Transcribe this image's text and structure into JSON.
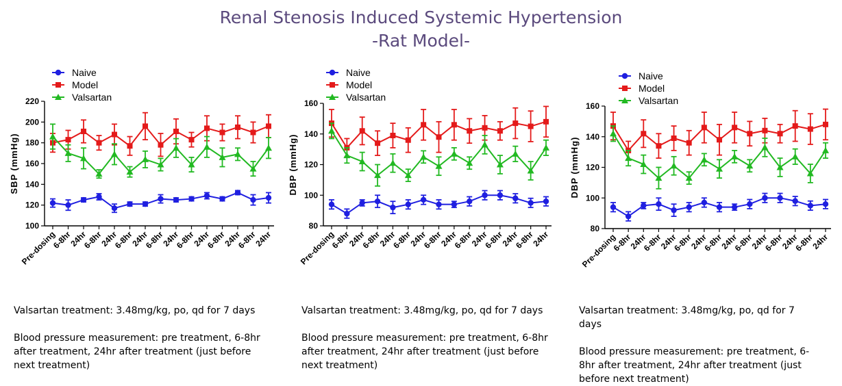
{
  "title_line1": "Renal Stenosis Induced Systemic Hypertension",
  "title_line2": "-Rat Model-",
  "colors": {
    "title": "#5b4a7d",
    "naive": "#1f1fe0",
    "model": "#e41a1a",
    "valsartan": "#22b922"
  },
  "chart_data": [
    {
      "type": "line",
      "ylabel": "SBP (mmHg)",
      "ylim": [
        100,
        220
      ],
      "yticks": [
        100,
        120,
        140,
        160,
        180,
        200,
        220
      ],
      "categories": [
        "Pre-dosing",
        "6-8hr",
        "24hr",
        "6-8hr",
        "24hr",
        "6-8hr",
        "24hr",
        "6-8hr",
        "24hr",
        "6-8hr",
        "24hr",
        "6-8hr",
        "24hr",
        "6-8hr",
        "24hr"
      ],
      "legend": "top-left",
      "series": [
        {
          "name": "Naive",
          "marker": "circle",
          "values": [
            122,
            120,
            125,
            128,
            117,
            121,
            121,
            126,
            125,
            126,
            129,
            126,
            132,
            125,
            127
          ],
          "errors": [
            4,
            5,
            2,
            3,
            4,
            2,
            2,
            4,
            2,
            2,
            3,
            2,
            2,
            5,
            5
          ]
        },
        {
          "name": "Model",
          "marker": "square",
          "values": [
            180,
            183,
            191,
            180,
            188,
            177,
            196,
            178,
            191,
            183,
            194,
            190,
            195,
            190,
            196
          ],
          "errors": [
            9,
            9,
            11,
            7,
            10,
            9,
            13,
            11,
            12,
            7,
            12,
            8,
            11,
            10,
            11
          ]
        },
        {
          "name": "Valsartan",
          "marker": "triangle",
          "values": [
            186,
            170,
            165,
            150,
            169,
            152,
            164,
            159,
            175,
            159,
            176,
            166,
            169,
            155,
            175
          ],
          "errors": [
            12,
            8,
            10,
            4,
            10,
            5,
            8,
            6,
            9,
            7,
            10,
            9,
            6,
            7,
            10
          ]
        }
      ]
    },
    {
      "type": "line",
      "ylabel": "DBP (mmHg)",
      "ylim": [
        80,
        160
      ],
      "yticks": [
        80,
        100,
        120,
        140,
        160
      ],
      "categories": [
        "Pre-dosing",
        "6-8hr",
        "24hr",
        "6-8hr",
        "24hr",
        "6-8hr",
        "24hr",
        "6-8hr",
        "24hr",
        "6-8hr",
        "24hr",
        "6-8hr",
        "24hr",
        "6-8hr",
        "24hr"
      ],
      "legend": "top-left",
      "series": [
        {
          "name": "Naive",
          "marker": "circle",
          "values": [
            94,
            88,
            95,
            96,
            92,
            94,
            97,
            94,
            94,
            96,
            100,
            100,
            98,
            95,
            96
          ],
          "errors": [
            3,
            3,
            2,
            4,
            4,
            3,
            3,
            3,
            2,
            3,
            3,
            3,
            3,
            3,
            3
          ]
        },
        {
          "name": "Model",
          "marker": "square",
          "values": [
            147,
            131,
            142,
            134,
            139,
            136,
            146,
            138,
            146,
            142,
            144,
            142,
            147,
            145,
            148
          ],
          "errors": [
            9,
            6,
            9,
            8,
            8,
            8,
            10,
            10,
            10,
            8,
            8,
            6,
            10,
            10,
            10
          ]
        },
        {
          "name": "Valsartan",
          "marker": "triangle",
          "values": [
            142,
            126,
            122,
            113,
            121,
            113,
            125,
            119,
            127,
            121,
            133,
            120,
            127,
            116,
            131
          ],
          "errors": [
            5,
            5,
            6,
            7,
            6,
            4,
            4,
            6,
            4,
            4,
            6,
            6,
            5,
            6,
            5
          ]
        }
      ]
    },
    {
      "type": "line",
      "ylabel": "DBP (mmHg)",
      "ylim": [
        80,
        160
      ],
      "yticks": [
        80,
        100,
        120,
        140,
        160
      ],
      "categories": [
        "Pre-dosing",
        "6-8hr",
        "24hr",
        "6-8hr",
        "24hr",
        "6-8hr",
        "24hr",
        "6-8hr",
        "24hr",
        "6-8hr",
        "24hr",
        "6-8hr",
        "24hr",
        "6-8hr",
        "24hr"
      ],
      "legend": "top-left",
      "series": [
        {
          "name": "Naive",
          "marker": "circle",
          "values": [
            94,
            88,
            95,
            96,
            92,
            94,
            97,
            94,
            94,
            96,
            100,
            100,
            98,
            95,
            96
          ],
          "errors": [
            3,
            3,
            2,
            4,
            4,
            3,
            3,
            3,
            2,
            3,
            3,
            3,
            3,
            3,
            3
          ]
        },
        {
          "name": "Model",
          "marker": "square",
          "values": [
            147,
            131,
            142,
            134,
            139,
            136,
            146,
            138,
            146,
            142,
            144,
            142,
            147,
            145,
            148
          ],
          "errors": [
            9,
            6,
            9,
            8,
            8,
            8,
            10,
            10,
            10,
            8,
            8,
            6,
            10,
            10,
            10
          ]
        },
        {
          "name": "Valsartan",
          "marker": "triangle",
          "values": [
            142,
            126,
            122,
            113,
            121,
            113,
            125,
            119,
            127,
            121,
            133,
            120,
            127,
            116,
            131
          ],
          "errors": [
            5,
            5,
            6,
            7,
            6,
            4,
            4,
            6,
            4,
            4,
            6,
            6,
            5,
            6,
            5
          ]
        }
      ]
    }
  ],
  "notes": [
    {
      "treatment": "Valsartan treatment: 3.48mg/kg, po, qd for 7 days",
      "measurement": "Blood pressure measurement: pre treatment, 6-8hr after treatment, 24hr after treatment (just before next treatment)"
    },
    {
      "treatment": "Valsartan treatment: 3.48mg/kg, po, qd for 7 days",
      "measurement": "Blood pressure measurement: pre treatment, 6-8hr after treatment, 24hr after treatment (just before next treatment)"
    },
    {
      "treatment": "Valsartan treatment: 3.48mg/kg, po, qd for 7 days",
      "measurement": "Blood pressure measurement: pre treatment, 6-8hr after treatment, 24hr after treatment (just before next treatment)"
    }
  ]
}
